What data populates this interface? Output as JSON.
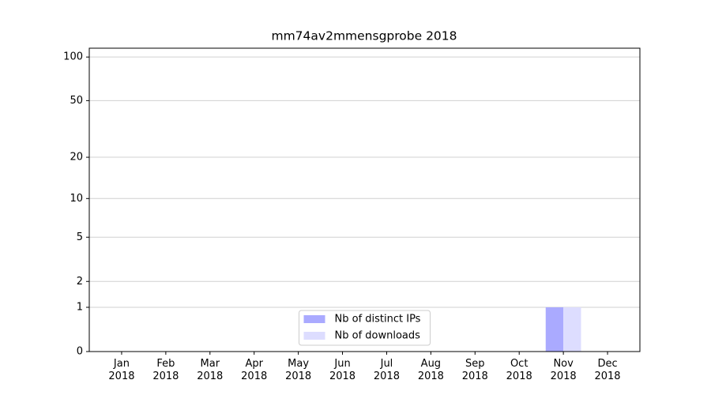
{
  "chart_data": {
    "type": "bar",
    "title": "mm74av2mmensgprobe 2018",
    "categories": [
      "Jan\n2018",
      "Feb\n2018",
      "Mar\n2018",
      "Apr\n2018",
      "May\n2018",
      "Jun\n2018",
      "Jul\n2018",
      "Aug\n2018",
      "Sep\n2018",
      "Oct\n2018",
      "Nov\n2018",
      "Dec\n2018"
    ],
    "series": [
      {
        "name": "Nb of distinct IPs",
        "color": "#aaaaff",
        "values": [
          0,
          0,
          0,
          0,
          0,
          0,
          0,
          0,
          0,
          0,
          1,
          0
        ]
      },
      {
        "name": "Nb of downloads",
        "color": "#ddddff",
        "values": [
          0,
          0,
          0,
          0,
          0,
          0,
          0,
          0,
          0,
          0,
          1,
          0
        ]
      }
    ],
    "yscale": "log1p",
    "ylim": [
      0,
      115
    ],
    "yticks": [
      0,
      1,
      2,
      5,
      10,
      20,
      50,
      100
    ],
    "grid": true,
    "legend": "lower center"
  }
}
